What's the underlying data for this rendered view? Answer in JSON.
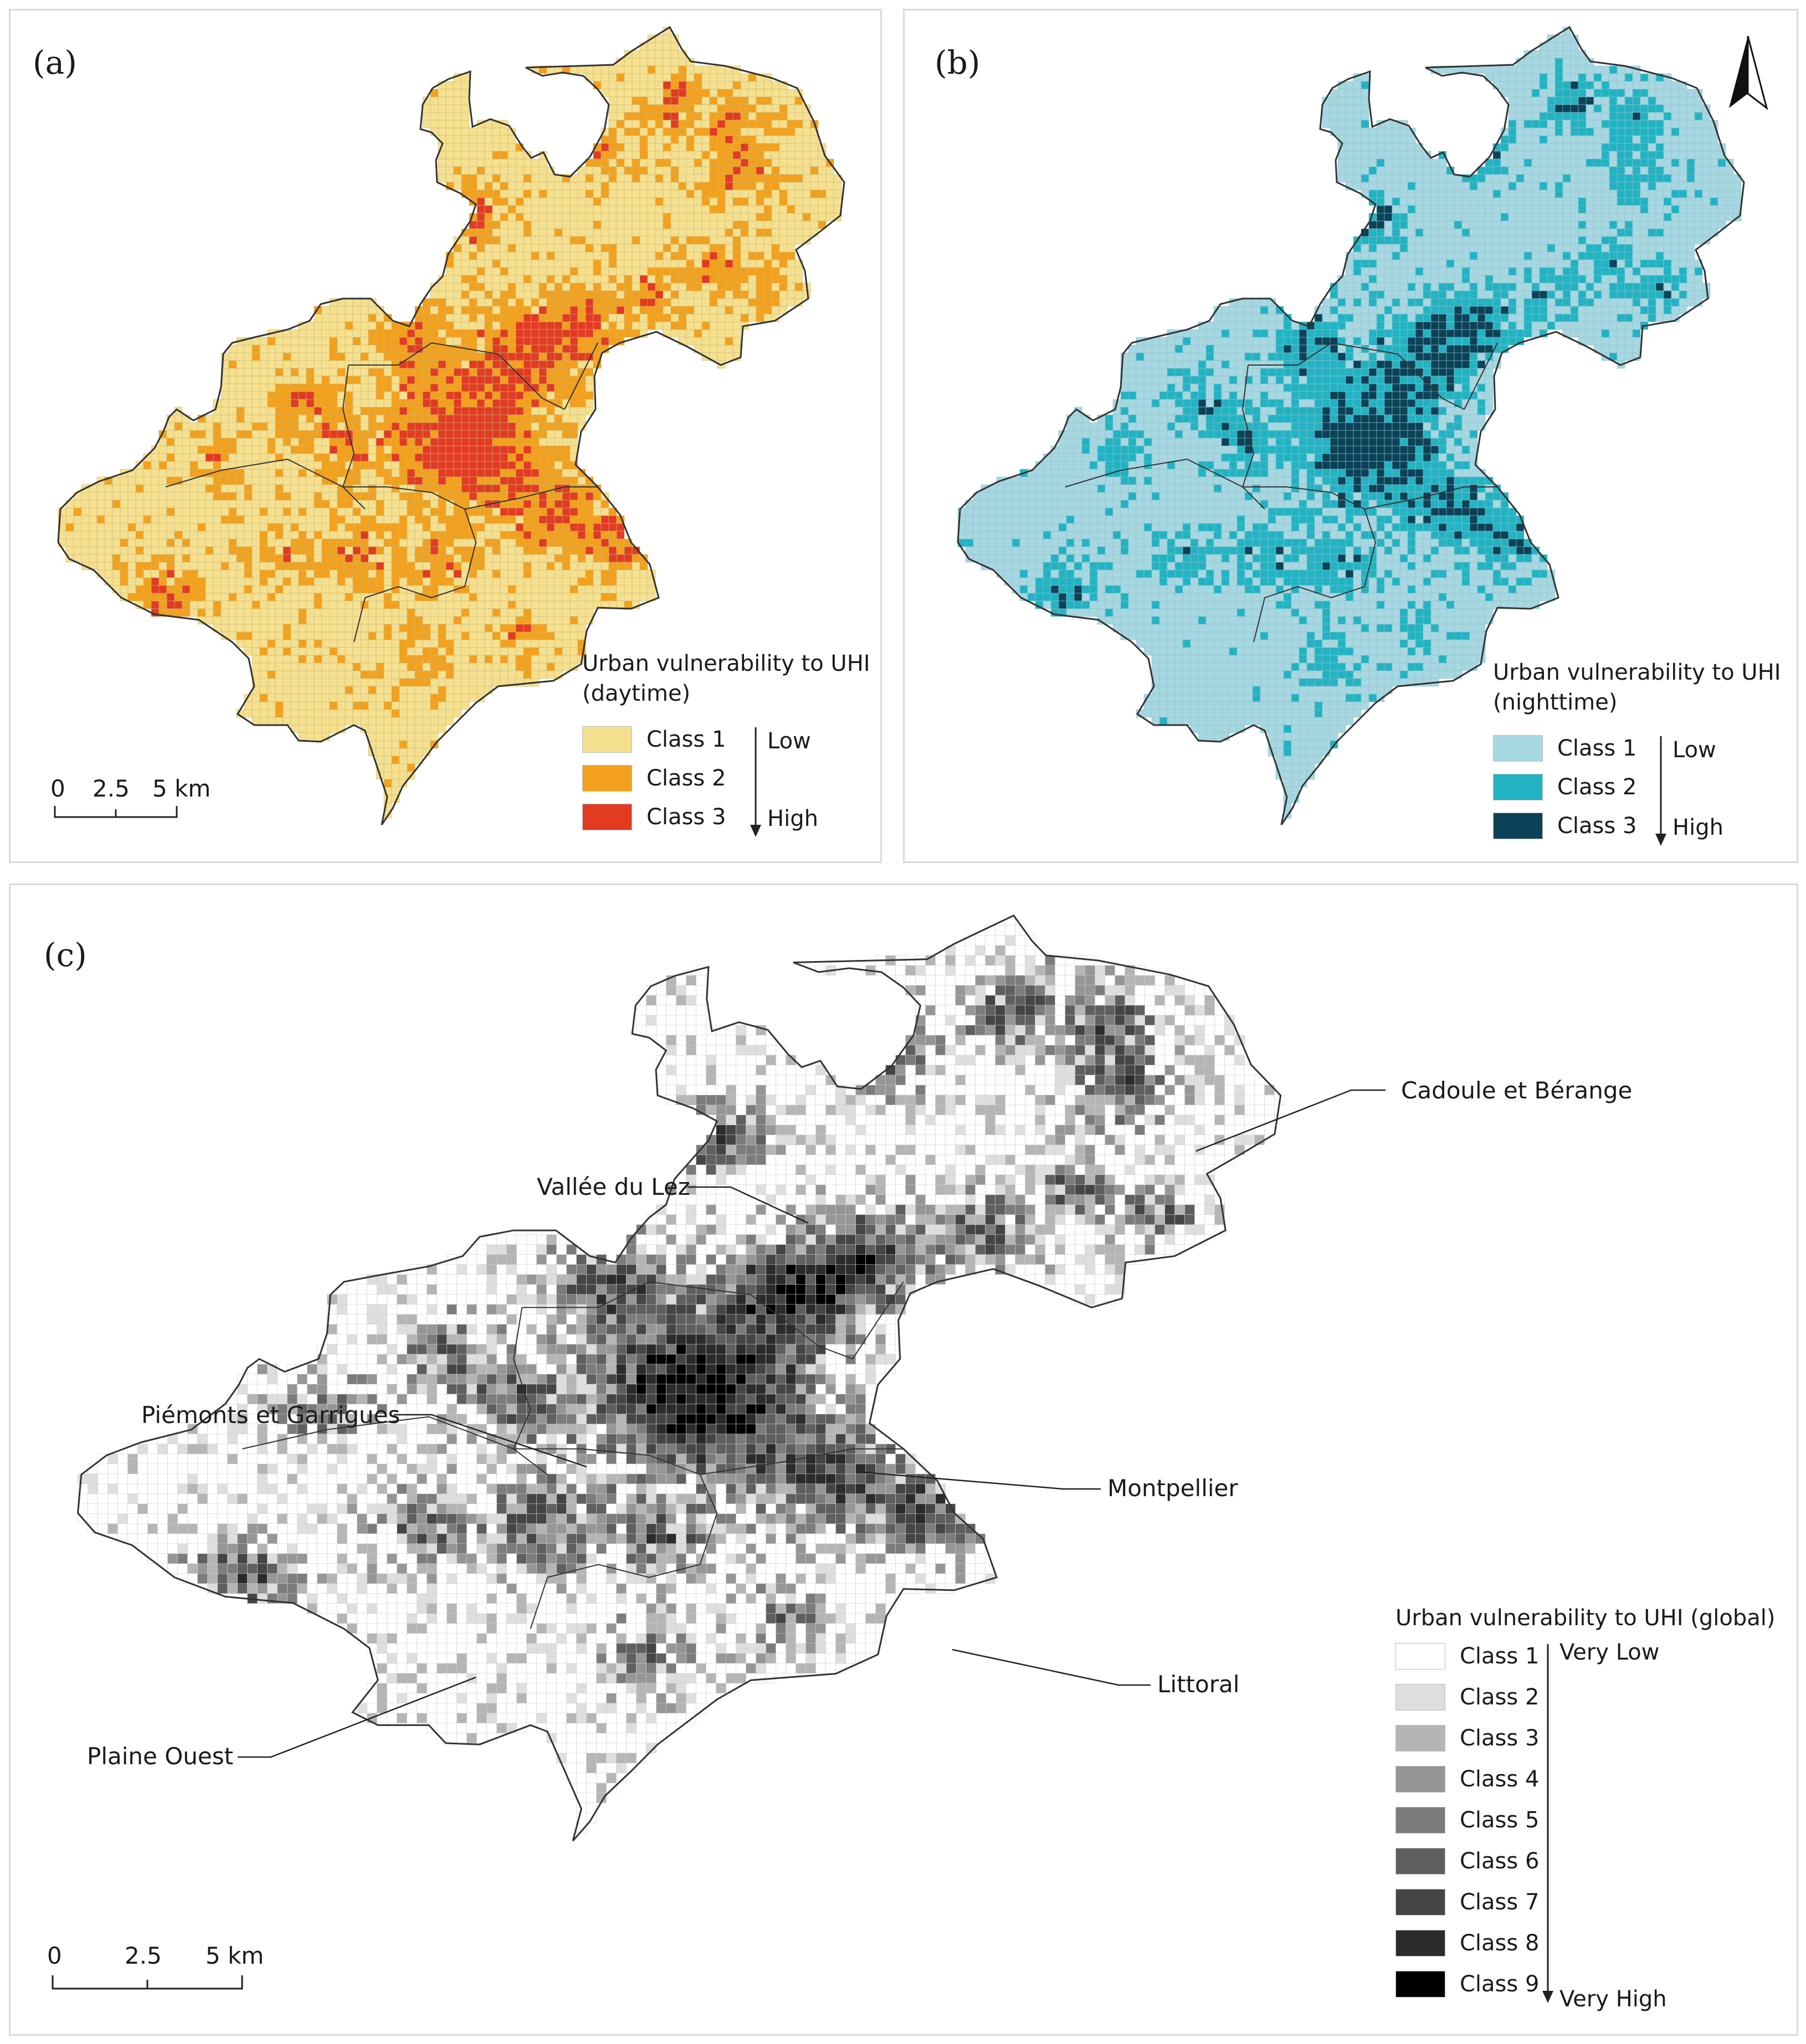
{
  "panels": {
    "a": {
      "letter": "(a)",
      "legend": {
        "title": "Urban vulnerability to UHI\n(daytime)",
        "classes": [
          {
            "label": "Class 1",
            "color": "#f5e08f"
          },
          {
            "label": "Class 2",
            "color": "#f3a01c"
          },
          {
            "label": "Class 3",
            "color": "#e33a22"
          }
        ],
        "low": "Low",
        "high": "High"
      },
      "scalebar": [
        "0",
        "2.5",
        "5 km"
      ]
    },
    "b": {
      "letter": "(b)",
      "legend": {
        "title": "Urban vulnerability to UHI\n(nighttime)",
        "classes": [
          {
            "label": "Class 1",
            "color": "#a7d7e0"
          },
          {
            "label": "Class 2",
            "color": "#22b3c3"
          },
          {
            "label": "Class 3",
            "color": "#0b4258"
          }
        ],
        "low": "Low",
        "high": "High"
      },
      "north_arrow_icon": "north-arrow-icon"
    },
    "c": {
      "letter": "(c)",
      "legend": {
        "title": "Urban vulnerability to UHI (global)",
        "classes": [
          {
            "label": "Class 1",
            "color": "#ffffff"
          },
          {
            "label": "Class 2",
            "color": "#dedede"
          },
          {
            "label": "Class 3",
            "color": "#b5b5b5"
          },
          {
            "label": "Class 4",
            "color": "#969696"
          },
          {
            "label": "Class 5",
            "color": "#7c7c7c"
          },
          {
            "label": "Class 6",
            "color": "#5f5f5f"
          },
          {
            "label": "Class 7",
            "color": "#454545"
          },
          {
            "label": "Class 8",
            "color": "#2b2b2b"
          },
          {
            "label": "Class 9",
            "color": "#000000"
          }
        ],
        "low": "Very Low",
        "high": "Very High"
      },
      "regions": [
        "Cadoule et Bérange",
        "Vallée du Lez",
        "Piémonts et Garrigues",
        "Montpellier",
        "Littoral",
        "Plaine Ouest"
      ],
      "scalebar": [
        "0",
        "2.5",
        "5 km"
      ]
    }
  }
}
